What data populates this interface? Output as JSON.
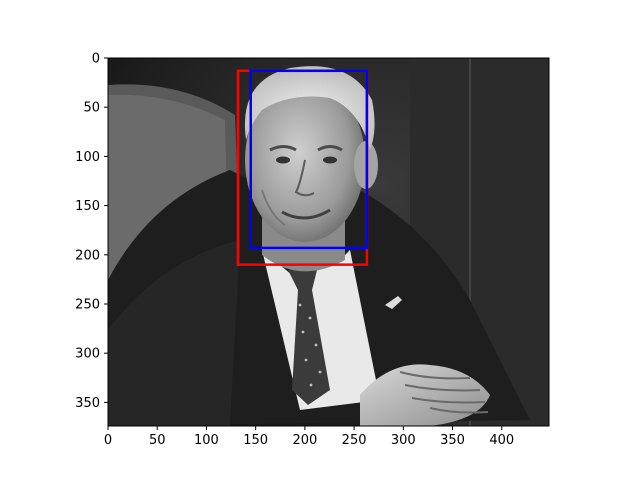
{
  "chart_data": {
    "type": "image",
    "image_size": [
      448,
      374
    ],
    "xlim": [
      0,
      448
    ],
    "ylim": [
      374,
      0
    ],
    "x_ticks": [
      0,
      50,
      100,
      150,
      200,
      250,
      300,
      350,
      400
    ],
    "y_ticks": [
      0,
      50,
      100,
      150,
      200,
      250,
      300,
      350
    ],
    "boxes": [
      {
        "color": "#ff0000",
        "x0": 132,
        "y0": 13,
        "x1": 263,
        "y1": 210
      },
      {
        "color": "#0000ff",
        "x0": 145,
        "y0": 13,
        "x1": 263,
        "y1": 193
      }
    ],
    "title": "",
    "xlabel": "",
    "ylabel": "",
    "grid": false,
    "colormap": "gray"
  }
}
